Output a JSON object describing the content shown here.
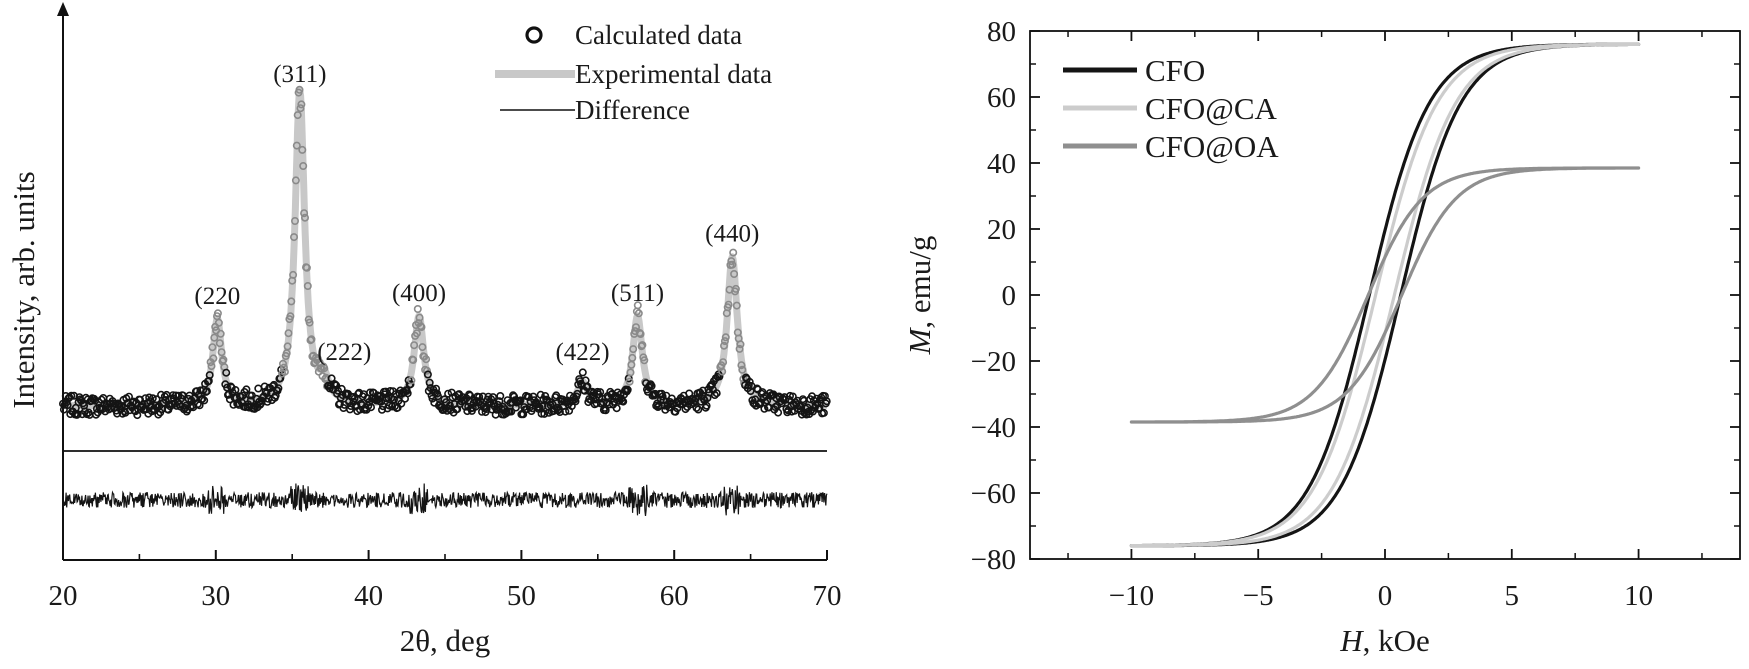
{
  "chart_data": [
    {
      "type": "scatter",
      "xlabel": "2θ, deg",
      "ylabel": "Intensity, arb. units",
      "xlim": [
        20,
        70
      ],
      "xticks": [
        "20",
        "30",
        "40",
        "50",
        "60",
        "70"
      ],
      "legend": {
        "placement": "top-right",
        "entries": [
          {
            "label": "Calculated data",
            "style": "open-circle",
            "color": "#111111"
          },
          {
            "label": "Experimental data",
            "style": "thick-line",
            "color": "#c8c8c8"
          },
          {
            "label": "Difference",
            "style": "thin-line",
            "color": "#111111"
          }
        ]
      },
      "baseline": 0.05,
      "peaks": [
        {
          "label": "(220",
          "x": 30.1,
          "height": 0.26,
          "width": 0.35
        },
        {
          "label": "(311)",
          "x": 35.5,
          "height": 0.95,
          "width": 0.38
        },
        {
          "label": "(222)",
          "x": 37.1,
          "height": 0.06,
          "width": 0.35
        },
        {
          "label": "(400)",
          "x": 43.3,
          "height": 0.27,
          "width": 0.38
        },
        {
          "label": "(422)",
          "x": 54.0,
          "height": 0.07,
          "width": 0.4
        },
        {
          "label": "(511)",
          "x": 57.6,
          "height": 0.27,
          "width": 0.38
        },
        {
          "label": "(440)",
          "x": 63.8,
          "height": 0.45,
          "width": 0.4
        }
      ],
      "noise_level": 0.03,
      "difference_noise": 0.13
    },
    {
      "type": "line",
      "xlabel": "H, kOe",
      "ylabel": "M, emu/g",
      "xlim": [
        -14,
        14
      ],
      "ylim": [
        -80,
        80
      ],
      "xticks": [
        -10,
        -5,
        0,
        5,
        10
      ],
      "yticks": [
        -80,
        -60,
        -40,
        -20,
        0,
        20,
        40,
        60,
        80
      ],
      "legend": {
        "placement": "top-left"
      },
      "series": [
        {
          "name": "CFO",
          "color": "#141414",
          "Ms": 76,
          "Hc": 0.62,
          "width": 2.35
        },
        {
          "name": "CFO@CA",
          "color": "#cccccc",
          "Ms": 76,
          "Hc": 0.37,
          "width": 2.4
        },
        {
          "name": "CFO@OA",
          "color": "#8f8f8f",
          "Ms": 38.5,
          "Hc": 0.66,
          "width": 2.15
        }
      ],
      "field_range": [
        -10,
        10
      ]
    }
  ]
}
